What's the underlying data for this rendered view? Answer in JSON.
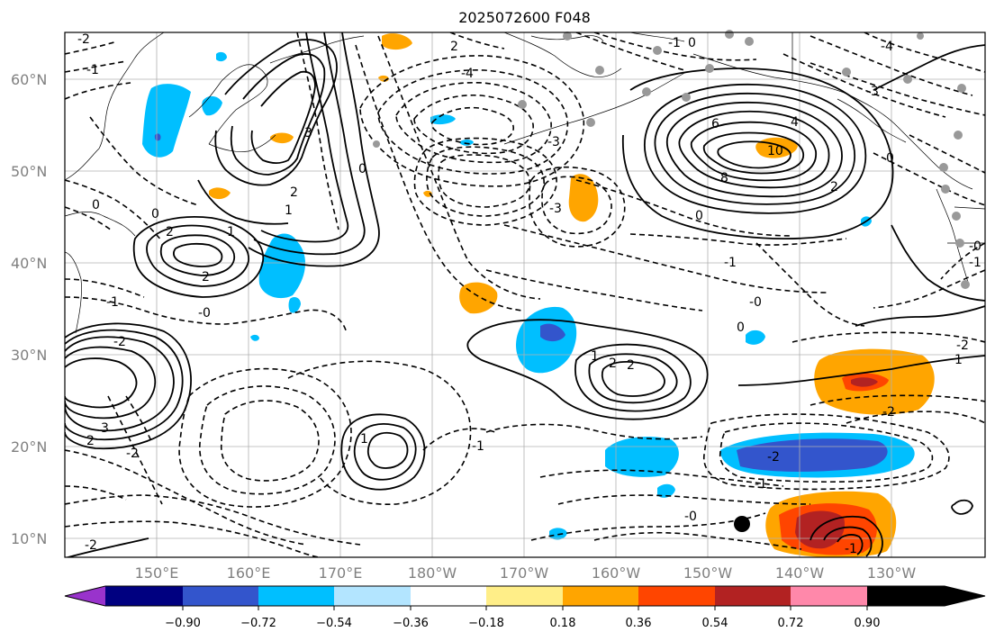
{
  "title": "2025072600 F048",
  "lat_labels": [
    "60°N",
    "50°N",
    "40°N",
    "30°N",
    "20°N",
    "10°N"
  ],
  "lon_labels": [
    "150°E",
    "160°E",
    "170°E",
    "180°W",
    "170°W",
    "160°W",
    "150°W",
    "140°W",
    "130°W"
  ],
  "colorbar": {
    "ticks": [
      "−0.90",
      "−0.72",
      "−0.54",
      "−0.36",
      "−0.18",
      "0.18",
      "0.36",
      "0.54",
      "0.72",
      "0.90"
    ],
    "colors": [
      "#9933cc",
      "#000080",
      "#3355cc",
      "#00bfff",
      "#b3e5ff",
      "#ffffff",
      "#ffee88",
      "#ffa500",
      "#ff4500",
      "#b22222",
      "#ff88aa"
    ]
  },
  "contour_labels": {
    "l1": "-2",
    "l2": "-1",
    "l3": "0",
    "l4": "3",
    "l5": "0",
    "l6": "2",
    "l7": "1",
    "l8": "2",
    "l9": "1",
    "l10": "2",
    "l11": "0",
    "l12": "-1",
    "l13": "-0",
    "l14": "-2",
    "l15": "2",
    "l16": "-4",
    "l17": "-1",
    "l18": "0",
    "l19": "-3",
    "l20": "-3",
    "l21": "4",
    "l22": "6",
    "l23": "8",
    "l24": "10",
    "l25": "2",
    "l26": "-1",
    "l27": "0",
    "l28": "-0",
    "l29": "0",
    "l30": "1",
    "l31": "2",
    "l32": "2",
    "l33": "1",
    "l34": "-2",
    "l35": "-1",
    "l36": "-0",
    "l37": "-2",
    "l38": "1",
    "l39": "-2",
    "l40": "-1",
    "l41": "-2",
    "l42": "-3",
    "l43": "-4",
    "l44": "2",
    "l45": "3",
    "l46": "-2",
    "l47": "-0",
    "l48": "-1",
    "l49": "-1",
    "l50": "0"
  }
}
